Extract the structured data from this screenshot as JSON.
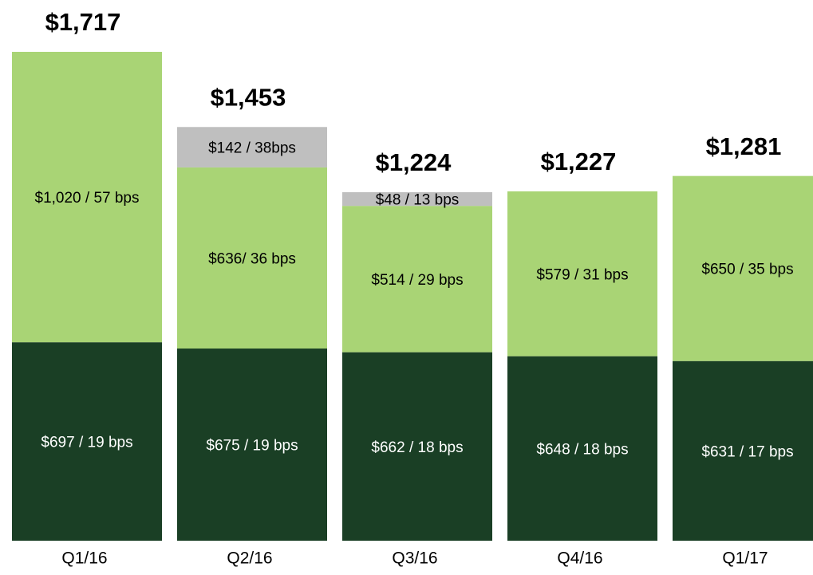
{
  "chart_data": {
    "type": "stacked_bar",
    "categories": [
      "Q1/16",
      "Q2/16",
      "Q3/16",
      "Q4/16",
      "Q1/17"
    ],
    "series": [
      {
        "color": "#1a3f25",
        "label_color": "#ffffff",
        "values": [
          697,
          675,
          662,
          648,
          631
        ],
        "value_labels": [
          "$697 / 19 bps",
          "$675 / 19 bps",
          "$662 / 18 bps",
          "$648 / 18 bps",
          "$631 / 17 bps"
        ]
      },
      {
        "color": "#a9d475",
        "label_color": "#000000",
        "values": [
          1020,
          636,
          514,
          579,
          650
        ],
        "value_labels": [
          "$1,020 / 57 bps",
          "$636/ 36 bps",
          "$514 / 29 bps",
          "$579 /  31 bps",
          "$650 /  35 bps"
        ]
      },
      {
        "color": "#bfbfbf",
        "label_color": "#000000",
        "values": [
          null,
          142,
          48,
          null,
          null
        ],
        "value_labels": [
          null,
          "$142 / 38bps",
          "$48 / 13 bps",
          null,
          null
        ]
      }
    ],
    "totals": [
      1717,
      1453,
      1224,
      1227,
      1281
    ],
    "total_labels": [
      "$1,717",
      "$1,453",
      "$1,224",
      "$1,227",
      "$1,281"
    ]
  }
}
